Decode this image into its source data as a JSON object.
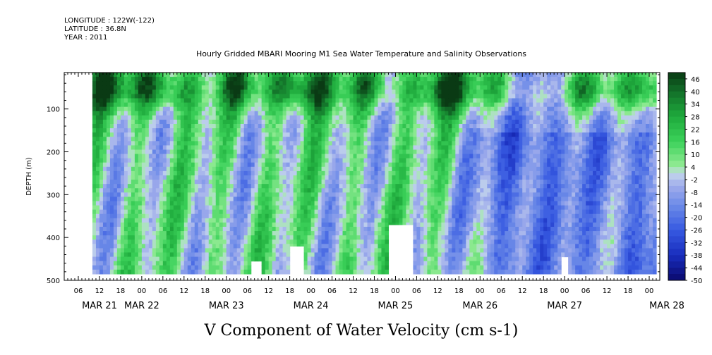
{
  "header": {
    "longitude": "LONGITUDE : 122W(-122)",
    "latitude": "LATITUDE : 36.8N",
    "year": "YEAR : 2011",
    "title": "Hourly Gridded MBARI Mooring M1 Sea Water Temperature and Salinity Observations"
  },
  "footer": {
    "variable_title": "V Component of Water Velocity (cm s-1)"
  },
  "chart_data": {
    "type": "heatmap",
    "title": "Hourly Gridded MBARI Mooring M1 Sea Water Temperature and Salinity Observations",
    "variable": "V Component of Water Velocity (cm s-1)",
    "ylabel": "DEPTH (m)",
    "yticks": [
      100,
      200,
      300,
      400,
      500
    ],
    "ylim": [
      500,
      15
    ],
    "y_inverted": true,
    "xticks_hours": [
      "06",
      "12",
      "18",
      "00",
      "06",
      "12",
      "18",
      "00",
      "06",
      "12",
      "18",
      "00",
      "06",
      "12",
      "18",
      "00",
      "06",
      "12",
      "18",
      "00",
      "06",
      "12",
      "18",
      "00",
      "06",
      "12",
      "18",
      "00",
      "06",
      "12",
      "18",
      "00"
    ],
    "x_dates": [
      "MAR 21",
      "MAR 22",
      "MAR 23",
      "MAR 24",
      "MAR 25",
      "MAR 26",
      "MAR 27",
      "MAR 28"
    ],
    "xlim": [
      "2011-03-21T02:00",
      "2011-03-28T03:00"
    ],
    "data_range": [
      "2011-03-21T10:00",
      "2011-03-28T02:00"
    ],
    "depth_range_data": [
      15,
      485
    ],
    "colorbar": {
      "labels": [
        "46",
        "40",
        "34",
        "28",
        "22",
        "16",
        "10",
        "4",
        "-2",
        "-8",
        "-14",
        "-20",
        "-26",
        "-32",
        "-38",
        "-44",
        "-50"
      ],
      "range": [
        -50,
        49
      ],
      "step": 3,
      "colors": {
        "high": "#0b3a14",
        "mid_positive": "#27b84a",
        "near_zero": "#b8bde8",
        "mid_negative": "#4a6fe0",
        "low": "#0a0a6e"
      }
    },
    "pattern": {
      "surface_layer": "strong positive (dark green) between 15 and ~120 m across all days",
      "upper_water_column": "alternating positive (green) and negative (blue) bands",
      "deep_water_column": "mostly weak negative (light blue), stronger negative after MAR 25",
      "gaps_near_bottom": [
        "MAR 23 ~07h-10h",
        "MAR 23 ~18h-22h",
        "MAR 24 ~22h - MAR 25 ~05h",
        "MAR 26 ~23h - MAR 27 ~01h"
      ]
    },
    "grid": false,
    "legend": "colorbar-right"
  }
}
